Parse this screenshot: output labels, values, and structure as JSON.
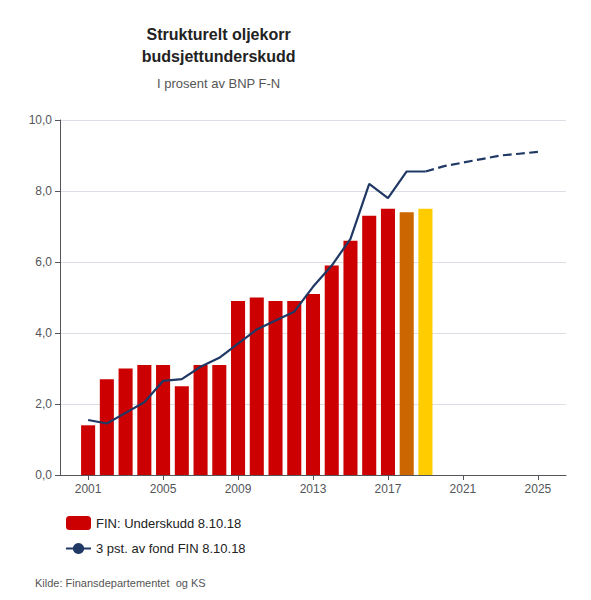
{
  "chart_data": {
    "type": "bar",
    "title": "Strukturelt oljekorr\nbudsjettunderskudd",
    "subtitle": "I prosent av BNP F-N",
    "annotations": [
      "Kilde: Finansdepartementet  og KS"
    ],
    "series": [
      {
        "name": "FIN: Underskudd 8.10.18",
        "type": "bar",
        "x": [
          2001,
          2002,
          2003,
          2004,
          2005,
          2006,
          2007,
          2008,
          2009,
          2010,
          2011,
          2012,
          2013,
          2014,
          2015,
          2016,
          2017,
          2018,
          2019
        ],
        "values": [
          1.4,
          2.7,
          3.0,
          3.1,
          3.1,
          2.5,
          3.1,
          3.1,
          4.9,
          5.0,
          4.9,
          4.9,
          5.1,
          5.9,
          6.6,
          7.3,
          7.5,
          7.4,
          7.5
        ],
        "colors": [
          "#cc0000",
          "#cc0000",
          "#cc0000",
          "#cc0000",
          "#cc0000",
          "#cc0000",
          "#cc0000",
          "#cc0000",
          "#cc0000",
          "#cc0000",
          "#cc0000",
          "#cc0000",
          "#cc0000",
          "#cc0000",
          "#cc0000",
          "#cc0000",
          "#cc0000",
          "#cc6600",
          "#ffcc00"
        ]
      },
      {
        "name": "3 pst. av fond FIN 8.10.18",
        "type": "line",
        "color": "#1f3864",
        "line_style": "solid",
        "x": [
          2001,
          2002,
          2003,
          2004,
          2005,
          2006,
          2007,
          2008,
          2009,
          2010,
          2011,
          2012,
          2013,
          2014,
          2015,
          2016,
          2017,
          2018,
          2019
        ],
        "values": [
          1.55,
          1.45,
          1.75,
          2.05,
          2.65,
          2.7,
          3.05,
          3.3,
          3.7,
          4.1,
          4.35,
          4.6,
          5.3,
          5.9,
          6.65,
          8.2,
          7.8,
          8.55,
          8.55
        ]
      },
      {
        "name": "3 pst. av fond FIN 8.10.18",
        "type": "line",
        "color": "#1f3864",
        "line_style": "dashed",
        "x": [
          2019,
          2020,
          2021,
          2022,
          2023,
          2024,
          2025
        ],
        "values": [
          8.55,
          8.7,
          8.8,
          8.9,
          9.0,
          9.05,
          9.1
        ]
      }
    ],
    "xlim": [
      1999.5,
      2026.5
    ],
    "xticks": [
      2001,
      2005,
      2009,
      2013,
      2017,
      2021,
      2025
    ],
    "ylim": [
      0,
      10.0
    ],
    "yticks": [
      {
        "value": 0.0,
        "label": "0,0"
      },
      {
        "value": 2.0,
        "label": "2,0"
      },
      {
        "value": 4.0,
        "label": "4,0"
      },
      {
        "value": 6.0,
        "label": "6,0"
      },
      {
        "value": 8.0,
        "label": "8,0"
      },
      {
        "value": 10.0,
        "label": "10,0"
      }
    ],
    "grid": true,
    "legend": "bottom"
  }
}
